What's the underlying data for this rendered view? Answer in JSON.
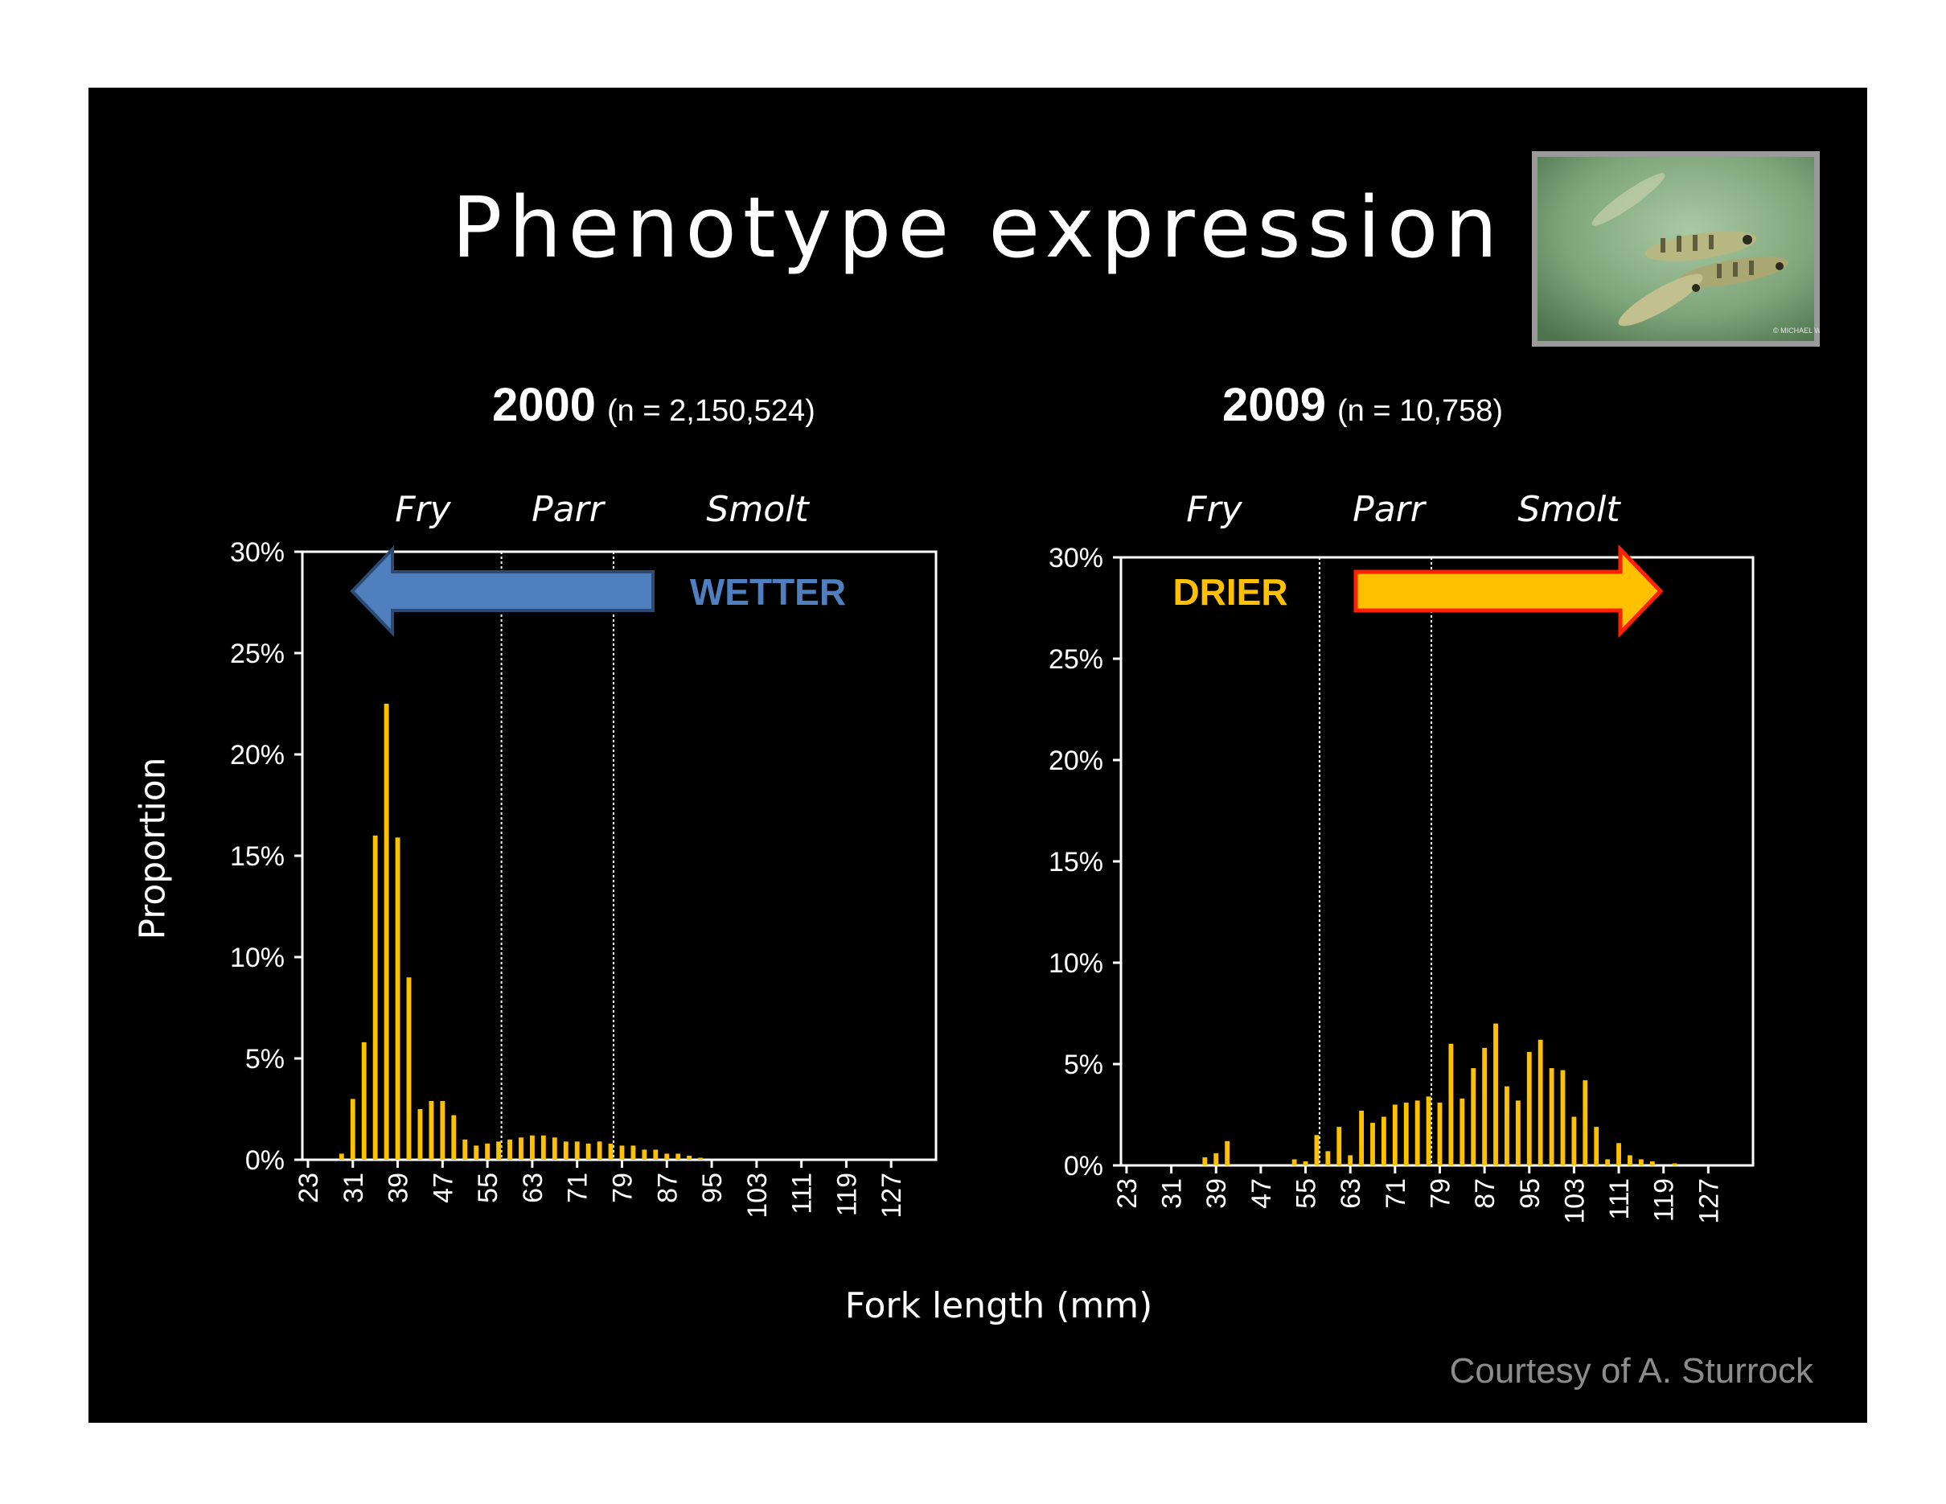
{
  "slide": {
    "title": "Phenotype expression",
    "credit": "Courtesy of A. Sturrock",
    "photo_credit": "© MICHAEL WIGLE",
    "xlabel": "Fork length (mm)",
    "ylabel": "Proportion"
  },
  "chart_data": [
    {
      "type": "bar",
      "year": "2000",
      "n_label": "(n = 2,150,524)",
      "stages": [
        "Fry",
        "Parr",
        "Smolt"
      ],
      "trend_label": "WETTER",
      "trend_direction": "left",
      "trend_color": "#4f7fbf",
      "bar_color": "#ffc000",
      "xlabel": "Fork length (mm)",
      "ylabel": "Proportion",
      "xlim": [
        22,
        135
      ],
      "ylim": [
        0,
        0.3
      ],
      "ytick_labels": [
        "0%",
        "5%",
        "10%",
        "15%",
        "20%",
        "25%",
        "30%"
      ],
      "xtick_labels": [
        "23",
        "31",
        "39",
        "47",
        "55",
        "63",
        "71",
        "79",
        "87",
        "95",
        "103",
        "111",
        "119",
        "127"
      ],
      "stage_boundaries": [
        57.5,
        77.5
      ],
      "x": [
        29,
        31,
        33,
        35,
        37,
        39,
        41,
        43,
        45,
        47,
        49,
        51,
        53,
        55,
        57,
        59,
        61,
        63,
        65,
        67,
        69,
        71,
        73,
        75,
        77,
        79,
        81,
        83,
        85,
        87,
        89,
        91,
        93
      ],
      "values": [
        0.003,
        0.03,
        0.058,
        0.16,
        0.225,
        0.159,
        0.09,
        0.025,
        0.029,
        0.029,
        0.022,
        0.01,
        0.007,
        0.008,
        0.009,
        0.01,
        0.011,
        0.012,
        0.012,
        0.011,
        0.009,
        0.009,
        0.008,
        0.009,
        0.008,
        0.007,
        0.007,
        0.005,
        0.005,
        0.003,
        0.003,
        0.002,
        0.001
      ]
    },
    {
      "type": "bar",
      "year": "2009",
      "n_label": "(n = 10,758)",
      "stages": [
        "Fry",
        "Parr",
        "Smolt"
      ],
      "trend_label": "DRIER",
      "trend_direction": "right",
      "trend_color": "#ffc000",
      "trend_outline": "#ff2000",
      "bar_color": "#ffc000",
      "xlabel": "Fork length (mm)",
      "ylabel": "Proportion",
      "xlim": [
        22,
        135
      ],
      "ylim": [
        0,
        0.3
      ],
      "ytick_labels": [
        "0%",
        "5%",
        "10%",
        "15%",
        "20%",
        "25%",
        "30%"
      ],
      "xtick_labels": [
        "23",
        "31",
        "39",
        "47",
        "55",
        "63",
        "71",
        "79",
        "87",
        "95",
        "103",
        "111",
        "119",
        "127"
      ],
      "stage_boundaries": [
        57.5,
        77.5
      ],
      "x": [
        37,
        39,
        41,
        53,
        55,
        57,
        59,
        61,
        63,
        65,
        67,
        69,
        71,
        73,
        75,
        77,
        79,
        81,
        83,
        85,
        87,
        89,
        91,
        93,
        95,
        97,
        99,
        101,
        103,
        105,
        107,
        109,
        111,
        113,
        115,
        117,
        121
      ],
      "values": [
        0.004,
        0.006,
        0.012,
        0.003,
        0.002,
        0.015,
        0.007,
        0.019,
        0.005,
        0.027,
        0.021,
        0.024,
        0.03,
        0.031,
        0.032,
        0.034,
        0.031,
        0.06,
        0.033,
        0.048,
        0.058,
        0.07,
        0.039,
        0.032,
        0.056,
        0.062,
        0.048,
        0.047,
        0.024,
        0.042,
        0.019,
        0.003,
        0.011,
        0.005,
        0.003,
        0.002,
        0.001
      ]
    }
  ]
}
